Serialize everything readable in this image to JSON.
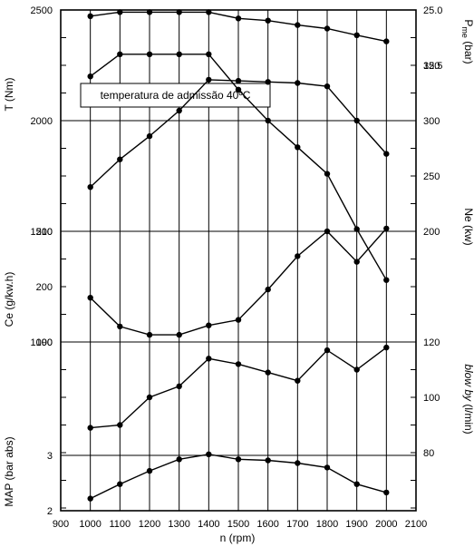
{
  "chart_data": {
    "type": "line",
    "title": "",
    "x": {
      "label": "n (rpm)",
      "ticks": [
        900,
        1000,
        1100,
        1200,
        1300,
        1400,
        1500,
        1600,
        1700,
        1800,
        1900,
        2000,
        2100
      ],
      "range": [
        900,
        2100
      ]
    },
    "annotation": "temperatura de admissão 40ºC",
    "left_axes": [
      {
        "label": "T (Nm)",
        "ticks": [
          1000,
          1500,
          2000,
          2500
        ]
      },
      {
        "label": "Ce (g/kw.h)",
        "ticks": [
          190,
          200,
          210
        ]
      },
      {
        "label": "MAP (bar abs)",
        "ticks": [
          2,
          3
        ]
      }
    ],
    "right_axes": [
      {
        "label": "P_me (bar)",
        "label_main": "P",
        "label_sub": "me",
        "label_unit": " (bar)",
        "ticks": [
          "12.5",
          "25.0"
        ]
      },
      {
        "label": "Ne (kw)",
        "ticks": [
          200,
          250,
          300,
          350
        ]
      },
      {
        "label": "blow by (l/min)",
        "label_italic": "blow by",
        "label_unit": " (l/min)",
        "ticks": [
          80,
          100,
          120
        ]
      }
    ],
    "series": [
      {
        "axis": "P_me (bar)",
        "x": [
          1000,
          1100,
          1200,
          1300,
          1400,
          1500,
          1600,
          1700,
          1800,
          1900,
          2000
        ],
        "values": [
          23.6,
          24.5,
          24.5,
          24.5,
          24.5,
          23.1,
          22.6,
          21.6,
          20.8,
          19.3,
          17.9
        ]
      },
      {
        "axis": "T (Nm)",
        "x": [
          1000,
          1100,
          1200,
          1300,
          1400,
          1500,
          1600,
          1700,
          1800,
          1900,
          2000
        ],
        "values": [
          2200,
          2300,
          2300,
          2300,
          2300,
          2140,
          2000,
          1880,
          1760,
          1510,
          1280
        ]
      },
      {
        "axis": "Ne (kw)",
        "x": [
          1000,
          1100,
          1200,
          1300,
          1400,
          1500,
          1600,
          1700,
          1800,
          1900,
          2000
        ],
        "values": [
          240,
          265,
          286,
          309,
          337,
          336,
          335,
          334,
          331,
          300,
          270
        ]
      },
      {
        "axis": "Ce (g/kw.h)",
        "x": [
          1000,
          1100,
          1200,
          1300,
          1400,
          1500,
          1600,
          1700,
          1800,
          1900,
          2000
        ],
        "values": [
          198,
          192.8,
          191.3,
          191.3,
          193,
          194,
          199.5,
          205.5,
          210,
          204.5,
          210.5
        ]
      },
      {
        "axis": "blow by (l/min)",
        "x": [
          1000,
          1100,
          1200,
          1300,
          1400,
          1500,
          1600,
          1700,
          1800,
          1900,
          2000
        ],
        "values": [
          89,
          90,
          100,
          104,
          114,
          112,
          109,
          106,
          117,
          110,
          118
        ]
      },
      {
        "axis": "MAP (bar abs)",
        "x": [
          1000,
          1100,
          1200,
          1300,
          1400,
          1500,
          1600,
          1700,
          1800,
          1900,
          2000
        ],
        "values": [
          2.22,
          2.48,
          2.72,
          2.93,
          3.02,
          2.93,
          2.91,
          2.86,
          2.78,
          2.48,
          2.33
        ]
      }
    ]
  }
}
